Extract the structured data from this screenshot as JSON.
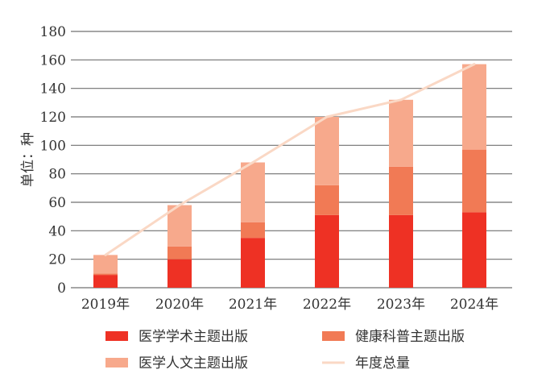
{
  "chart_data": {
    "type": "bar",
    "stacked": true,
    "categories": [
      "2019年",
      "2020年",
      "2021年",
      "2022年",
      "2023年",
      "2024年"
    ],
    "series": [
      {
        "name": "医学学术主题出版",
        "color": "#ee3124",
        "values": [
          9,
          20,
          35,
          51,
          51,
          53
        ]
      },
      {
        "name": "健康科普主题出版",
        "color": "#f17a55",
        "values": [
          1,
          9,
          11,
          21,
          34,
          44
        ]
      },
      {
        "name": "医学人文主题出版",
        "color": "#f7a98c",
        "values": [
          13,
          29,
          42,
          48,
          47,
          60
        ]
      }
    ],
    "line": {
      "name": "年度总量",
      "color": "#fad8c5",
      "values": [
        23,
        58,
        88,
        120,
        132,
        157
      ]
    },
    "ylabel": "单位：种",
    "ylim": [
      0,
      180
    ],
    "yticks": [
      0,
      20,
      40,
      60,
      80,
      100,
      120,
      140,
      160,
      180
    ],
    "grid": true,
    "legend_position": "bottom"
  }
}
